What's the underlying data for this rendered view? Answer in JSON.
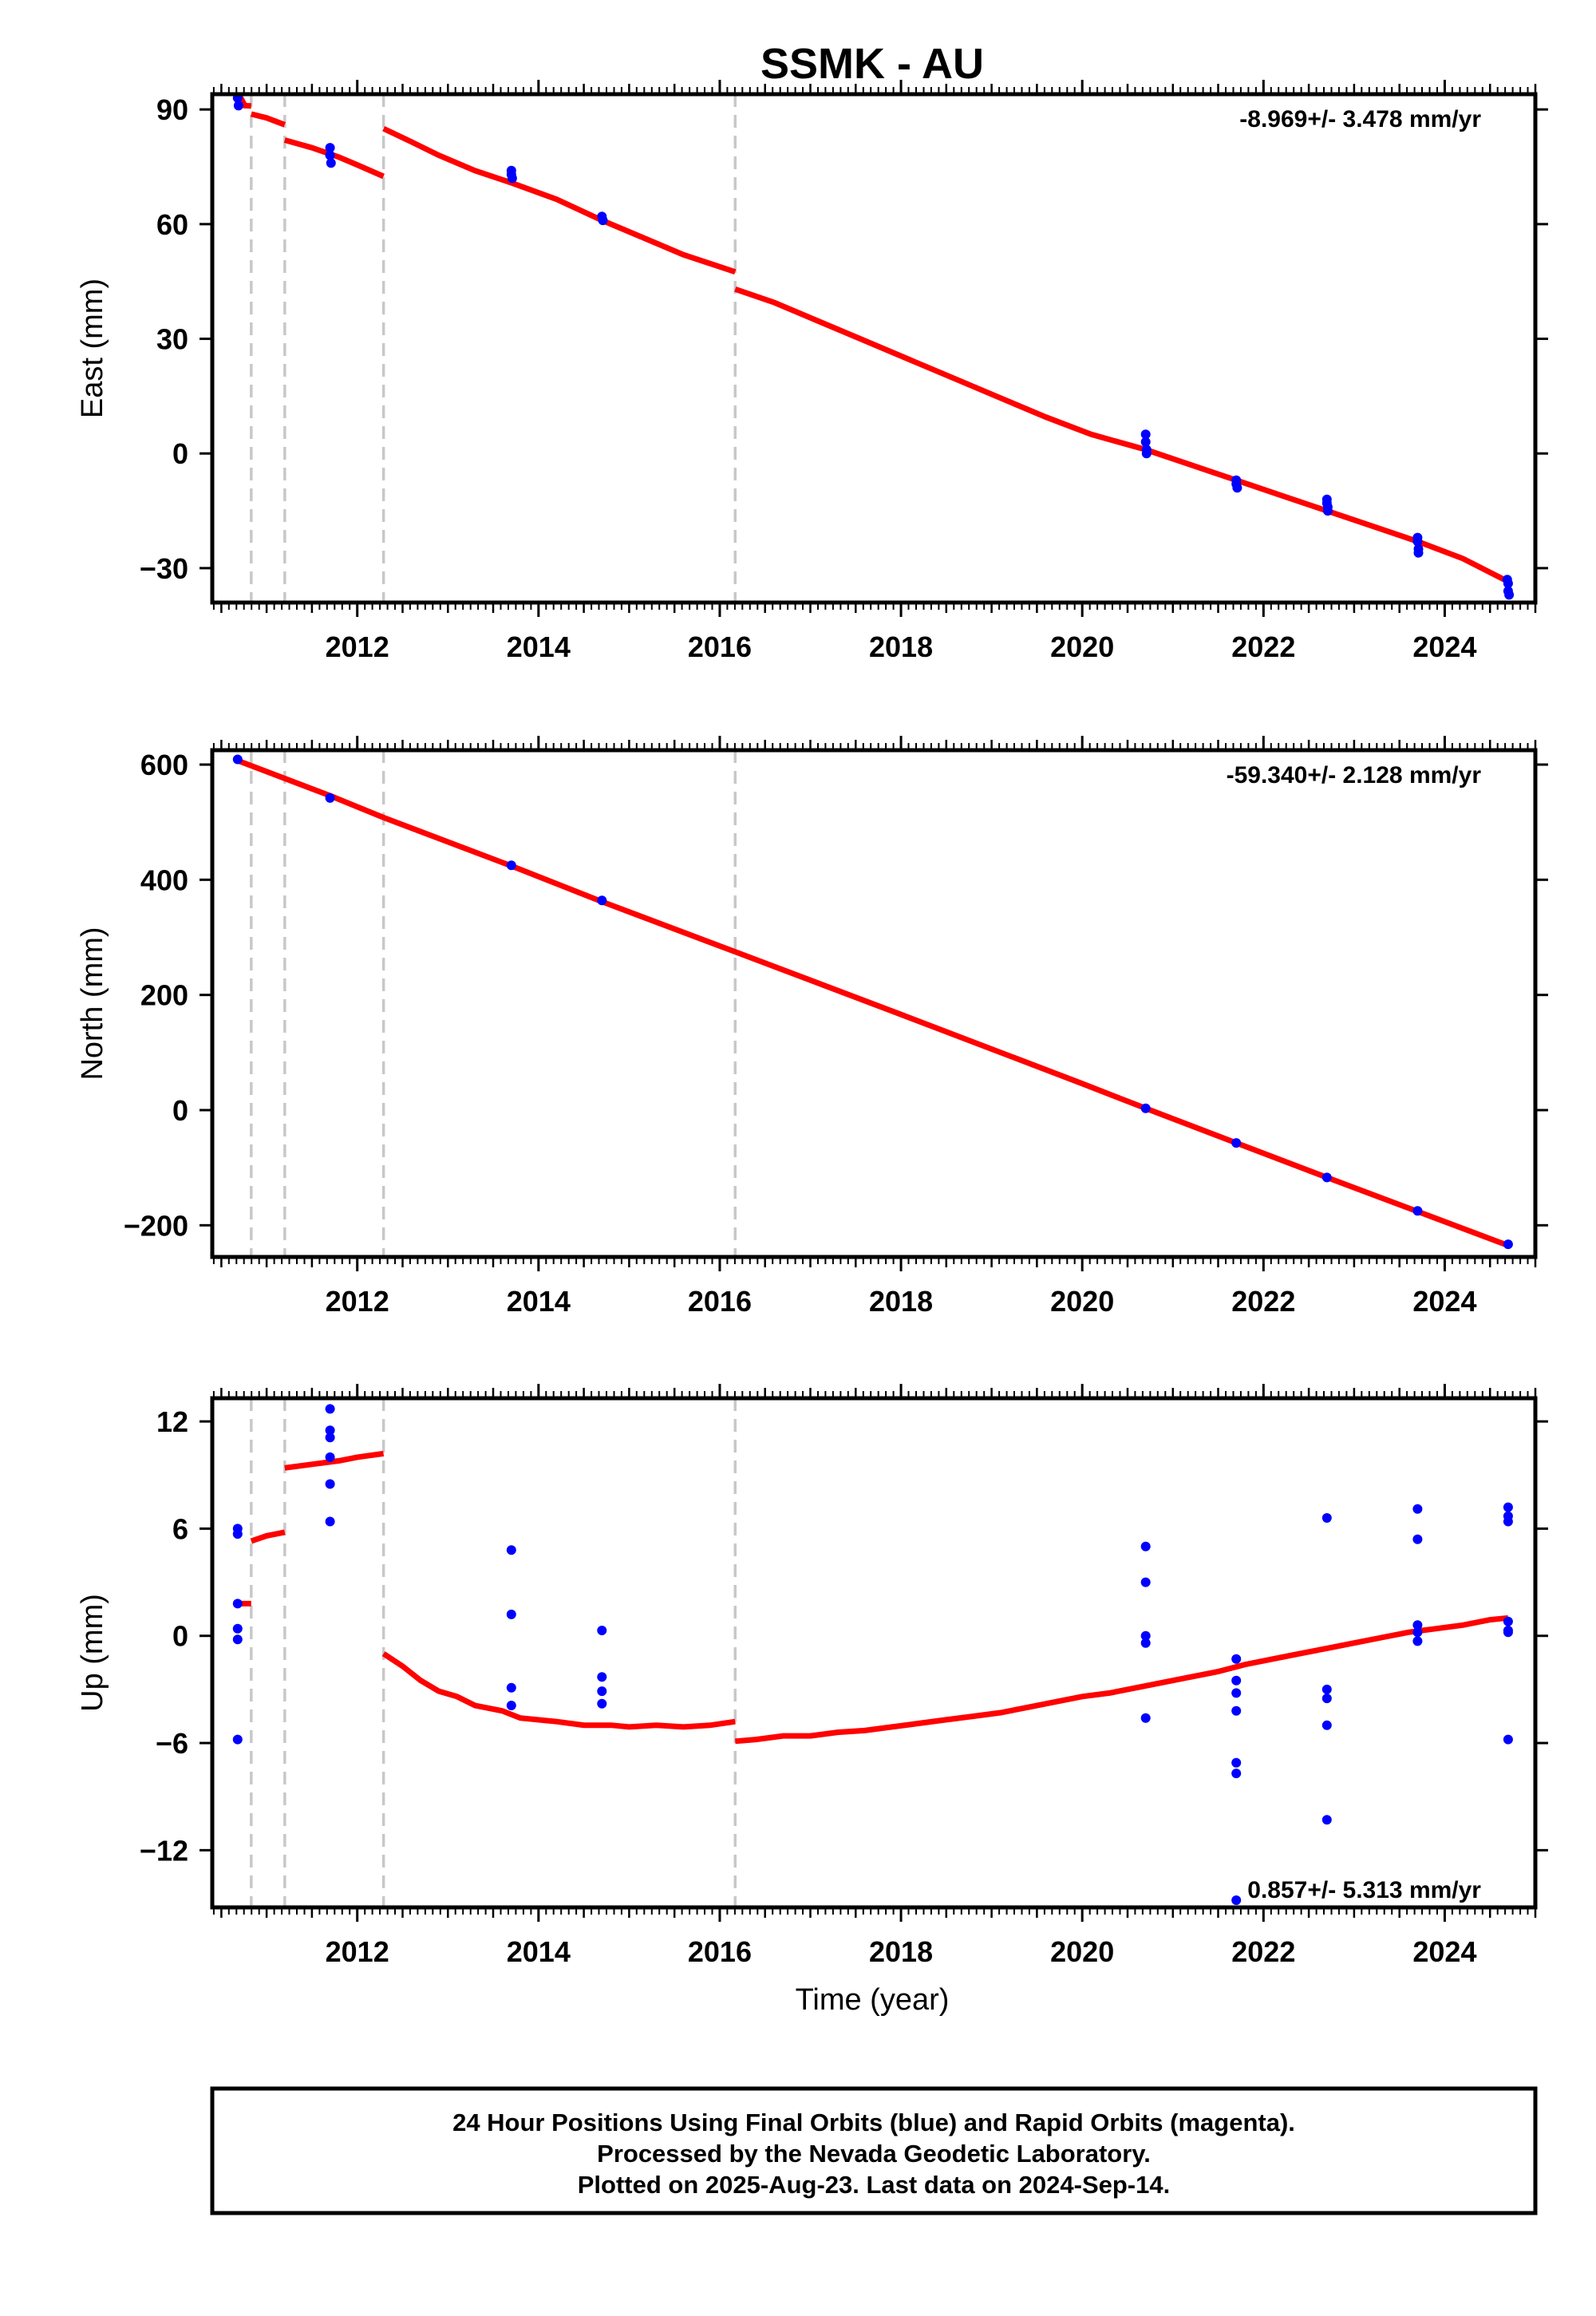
{
  "title": "SSMK - AU",
  "colors": {
    "fit": "#ff0000",
    "points": "#0000ff",
    "steps": "#c8c8c8",
    "frame": "#000000"
  },
  "xlabel": "Time (year)",
  "footer": {
    "lines": [
      "24 Hour Positions Using Final Orbits (blue) and Rapid Orbits (magenta).",
      "Processed by the Nevada Geodetic Laboratory.",
      "Plotted on 2025-Aug-23. Last data on 2024-Sep-14."
    ]
  },
  "chart_data": [
    {
      "type": "scatter",
      "component": "East",
      "ylabel": "East (mm)",
      "rate_label": "-8.969+/- 3.478 mm/yr",
      "rate_position": "top-right",
      "xlim": [
        2010.4,
        2025.0
      ],
      "ylim": [
        -39,
        94
      ],
      "xticks": [
        2012,
        2014,
        2016,
        2018,
        2020,
        2022,
        2024
      ],
      "xtick_labels": [
        "2012",
        "2014",
        "2016",
        "2018",
        "2020",
        "2022",
        "2024"
      ],
      "yticks": [
        90,
        60,
        30,
        0,
        -30
      ],
      "ytick_labels": [
        "90",
        "60",
        "30",
        "0",
        "−30"
      ],
      "step_epochs": [
        2010.83,
        2011.2,
        2012.29,
        2016.17
      ],
      "points": [
        [
          2010.68,
          94
        ],
        [
          2010.68,
          93
        ],
        [
          2010.69,
          91
        ],
        [
          2011.7,
          80
        ],
        [
          2011.7,
          78
        ],
        [
          2011.71,
          76
        ],
        [
          2013.7,
          74
        ],
        [
          2013.7,
          73
        ],
        [
          2013.71,
          72
        ],
        [
          2014.7,
          62
        ],
        [
          2014.71,
          61
        ],
        [
          2020.7,
          5
        ],
        [
          2020.7,
          3
        ],
        [
          2020.71,
          1
        ],
        [
          2020.71,
          0
        ],
        [
          2021.7,
          -7
        ],
        [
          2021.7,
          -8
        ],
        [
          2021.71,
          -9
        ],
        [
          2022.7,
          -12
        ],
        [
          2022.7,
          -13
        ],
        [
          2022.71,
          -14
        ],
        [
          2022.71,
          -15
        ],
        [
          2023.7,
          -22
        ],
        [
          2023.7,
          -23
        ],
        [
          2023.71,
          -25
        ],
        [
          2023.71,
          -26
        ],
        [
          2024.69,
          -33
        ],
        [
          2024.7,
          -34
        ],
        [
          2024.7,
          -36
        ],
        [
          2024.71,
          -37
        ]
      ],
      "fit_segments": [
        [
          [
            2010.68,
            92.5
          ],
          [
            2010.72,
            92.8
          ],
          [
            2010.76,
            91.0
          ],
          [
            2010.83,
            90.9
          ]
        ],
        [
          [
            2010.83,
            88.8
          ],
          [
            2011.0,
            87.8
          ],
          [
            2011.2,
            86.0
          ]
        ],
        [
          [
            2011.2,
            82.0
          ],
          [
            2011.5,
            80.0
          ],
          [
            2011.8,
            77.5
          ],
          [
            2012.0,
            75.5
          ],
          [
            2012.29,
            72.5
          ]
        ],
        [
          [
            2012.29,
            85.0
          ],
          [
            2012.6,
            81.5
          ],
          [
            2012.9,
            78.0
          ],
          [
            2013.3,
            74.0
          ],
          [
            2013.7,
            70.8
          ],
          [
            2014.2,
            66.5
          ],
          [
            2014.7,
            61.0
          ],
          [
            2015.2,
            56.0
          ],
          [
            2015.6,
            52.0
          ],
          [
            2016.17,
            47.5
          ]
        ],
        [
          [
            2016.17,
            43.0
          ],
          [
            2016.6,
            39.5
          ],
          [
            2017.1,
            34.5
          ],
          [
            2017.6,
            29.5
          ],
          [
            2018.1,
            24.5
          ],
          [
            2018.6,
            19.5
          ],
          [
            2019.1,
            14.5
          ],
          [
            2019.6,
            9.5
          ],
          [
            2020.1,
            5.0
          ],
          [
            2020.7,
            1.0
          ],
          [
            2021.2,
            -3.0
          ],
          [
            2021.7,
            -7.0
          ],
          [
            2022.2,
            -11.0
          ],
          [
            2022.7,
            -15.0
          ],
          [
            2023.2,
            -19.0
          ],
          [
            2023.7,
            -23.0
          ],
          [
            2024.2,
            -27.5
          ],
          [
            2024.7,
            -33.5
          ]
        ]
      ]
    },
    {
      "type": "scatter",
      "component": "North",
      "ylabel": "North (mm)",
      "rate_label": "-59.340+/- 2.128 mm/yr",
      "rate_position": "top-right",
      "xlim": [
        2010.4,
        2025.0
      ],
      "ylim": [
        -255,
        625
      ],
      "xticks": [
        2012,
        2014,
        2016,
        2018,
        2020,
        2022,
        2024
      ],
      "xtick_labels": [
        "2012",
        "2014",
        "2016",
        "2018",
        "2020",
        "2022",
        "2024"
      ],
      "yticks": [
        600,
        400,
        200,
        0,
        -200
      ],
      "ytick_labels": [
        "600",
        "400",
        "200",
        "0",
        "−200"
      ],
      "step_epochs": [
        2010.83,
        2011.2,
        2012.29,
        2016.17
      ],
      "points": [
        [
          2010.68,
          609
        ],
        [
          2011.7,
          542
        ],
        [
          2013.7,
          425
        ],
        [
          2014.7,
          364
        ],
        [
          2020.7,
          3
        ],
        [
          2021.7,
          -57
        ],
        [
          2022.7,
          -117
        ],
        [
          2023.7,
          -175
        ],
        [
          2024.7,
          -233
        ]
      ],
      "fit_segments": [
        [
          [
            2010.68,
            607
          ],
          [
            2011.7,
            546
          ],
          [
            2012.29,
            508
          ],
          [
            2013.7,
            424
          ],
          [
            2014.7,
            362
          ],
          [
            2016.17,
            275
          ],
          [
            2018.0,
            166
          ],
          [
            2020.0,
            46
          ],
          [
            2020.7,
            3
          ],
          [
            2021.7,
            -57
          ],
          [
            2022.7,
            -117
          ],
          [
            2023.7,
            -176
          ],
          [
            2024.7,
            -235
          ]
        ]
      ]
    },
    {
      "type": "scatter",
      "component": "Up",
      "ylabel": "Up (mm)",
      "rate_label": "0.857+/- 5.313 mm/yr",
      "rate_position": "bottom-right",
      "xlim": [
        2010.4,
        2025.0
      ],
      "ylim": [
        -15.2,
        13.3
      ],
      "xticks": [
        2012,
        2014,
        2016,
        2018,
        2020,
        2022,
        2024
      ],
      "xtick_labels": [
        "2012",
        "2014",
        "2016",
        "2018",
        "2020",
        "2022",
        "2024"
      ],
      "yticks": [
        12,
        6,
        0,
        -6,
        -12
      ],
      "ytick_labels": [
        "12",
        "6",
        "0",
        "−6",
        "−12"
      ],
      "step_epochs": [
        2010.83,
        2011.2,
        2012.29,
        2016.17
      ],
      "points": [
        [
          2010.68,
          6.0
        ],
        [
          2010.68,
          5.7
        ],
        [
          2010.68,
          1.8
        ],
        [
          2010.68,
          0.4
        ],
        [
          2010.68,
          -0.2
        ],
        [
          2010.68,
          -5.8
        ],
        [
          2011.7,
          12.7
        ],
        [
          2011.7,
          11.5
        ],
        [
          2011.7,
          11.1
        ],
        [
          2011.7,
          10.0
        ],
        [
          2011.7,
          8.5
        ],
        [
          2011.7,
          6.4
        ],
        [
          2013.7,
          4.8
        ],
        [
          2013.7,
          1.2
        ],
        [
          2013.7,
          -2.9
        ],
        [
          2013.7,
          -3.9
        ],
        [
          2014.7,
          0.3
        ],
        [
          2014.7,
          -2.3
        ],
        [
          2014.7,
          -3.1
        ],
        [
          2014.7,
          -3.8
        ],
        [
          2020.7,
          5.0
        ],
        [
          2020.7,
          3.0
        ],
        [
          2020.7,
          0.0
        ],
        [
          2020.7,
          -0.4
        ],
        [
          2020.7,
          -4.6
        ],
        [
          2021.7,
          -1.3
        ],
        [
          2021.7,
          -2.5
        ],
        [
          2021.7,
          -3.2
        ],
        [
          2021.7,
          -4.2
        ],
        [
          2021.7,
          -7.1
        ],
        [
          2021.7,
          -7.7
        ],
        [
          2021.7,
          -14.8
        ],
        [
          2022.7,
          6.6
        ],
        [
          2022.7,
          -3.0
        ],
        [
          2022.7,
          -3.5
        ],
        [
          2022.7,
          -5.0
        ],
        [
          2022.7,
          -10.3
        ],
        [
          2023.7,
          7.1
        ],
        [
          2023.7,
          5.4
        ],
        [
          2023.7,
          0.6
        ],
        [
          2023.7,
          0.2
        ],
        [
          2023.7,
          -0.3
        ],
        [
          2024.7,
          7.2
        ],
        [
          2024.7,
          6.7
        ],
        [
          2024.7,
          6.4
        ],
        [
          2024.7,
          0.8
        ],
        [
          2024.7,
          0.3
        ],
        [
          2024.7,
          0.2
        ],
        [
          2024.7,
          -5.8
        ]
      ],
      "fit_segments": [
        [
          [
            2010.68,
            1.8
          ],
          [
            2010.83,
            1.8
          ]
        ],
        [
          [
            2010.83,
            5.3
          ],
          [
            2011.0,
            5.6
          ],
          [
            2011.2,
            5.8
          ]
        ],
        [
          [
            2011.2,
            9.4
          ],
          [
            2011.5,
            9.6
          ],
          [
            2011.8,
            9.8
          ],
          [
            2012.0,
            10.0
          ],
          [
            2012.29,
            10.2
          ]
        ],
        [
          [
            2012.29,
            -1.0
          ],
          [
            2012.5,
            -1.7
          ],
          [
            2012.7,
            -2.5
          ],
          [
            2012.9,
            -3.1
          ],
          [
            2013.1,
            -3.4
          ],
          [
            2013.3,
            -3.9
          ],
          [
            2013.6,
            -4.2
          ],
          [
            2013.8,
            -4.6
          ],
          [
            2014.2,
            -4.8
          ],
          [
            2014.5,
            -5.0
          ],
          [
            2014.8,
            -5.0
          ],
          [
            2015.0,
            -5.1
          ],
          [
            2015.3,
            -5.0
          ],
          [
            2015.6,
            -5.1
          ],
          [
            2015.9,
            -5.0
          ],
          [
            2016.17,
            -4.8
          ]
        ],
        [
          [
            2016.17,
            -5.9
          ],
          [
            2016.4,
            -5.8
          ],
          [
            2016.7,
            -5.6
          ],
          [
            2017.0,
            -5.6
          ],
          [
            2017.3,
            -5.4
          ],
          [
            2017.6,
            -5.3
          ],
          [
            2017.9,
            -5.1
          ],
          [
            2018.2,
            -4.9
          ],
          [
            2018.5,
            -4.7
          ],
          [
            2018.8,
            -4.5
          ],
          [
            2019.1,
            -4.3
          ],
          [
            2019.4,
            -4.0
          ],
          [
            2019.7,
            -3.7
          ],
          [
            2020.0,
            -3.4
          ],
          [
            2020.3,
            -3.2
          ],
          [
            2020.6,
            -2.9
          ],
          [
            2020.9,
            -2.6
          ],
          [
            2021.2,
            -2.3
          ],
          [
            2021.5,
            -2.0
          ],
          [
            2021.8,
            -1.6
          ],
          [
            2022.1,
            -1.3
          ],
          [
            2022.4,
            -1.0
          ],
          [
            2022.7,
            -0.7
          ],
          [
            2023.0,
            -0.4
          ],
          [
            2023.3,
            -0.1
          ],
          [
            2023.6,
            0.2
          ],
          [
            2023.9,
            0.4
          ],
          [
            2024.2,
            0.6
          ],
          [
            2024.5,
            0.9
          ],
          [
            2024.7,
            1.0
          ]
        ]
      ]
    }
  ]
}
